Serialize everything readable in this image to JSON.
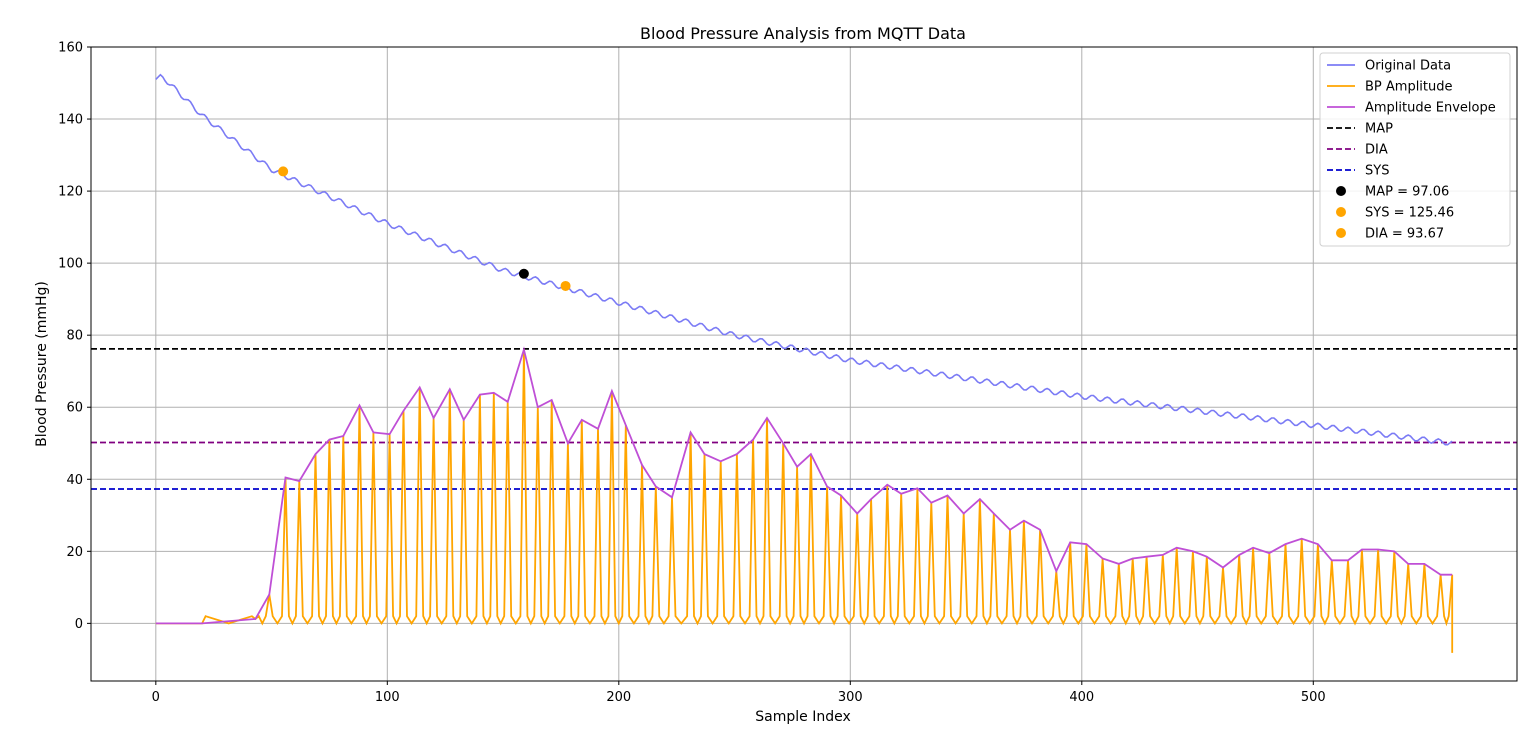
{
  "chart_data": {
    "type": "line",
    "title": "Blood Pressure Analysis from MQTT Data",
    "xlabel": "Sample Index",
    "ylabel": "Blood Pressure (mmHg)",
    "xlim": [
      -28,
      588
    ],
    "ylim": [
      -16,
      160
    ],
    "xticks": [
      0,
      100,
      200,
      300,
      400,
      500
    ],
    "yticks": [
      0,
      20,
      40,
      60,
      80,
      100,
      120,
      140,
      160
    ],
    "grid": true,
    "legend_position": "top-right",
    "colors": {
      "original": "#7b7bf5",
      "amplitude": "#ffa500",
      "envelope": "#bf4fd6",
      "map_line": "#000000",
      "dia_line": "#800080",
      "sys_line": "#0000cd",
      "map_point": "#000000",
      "sys_point": "#ffa500",
      "dia_point": "#ffa500"
    },
    "original_data": {
      "name": "Original Data",
      "start": 151,
      "end": 50,
      "x_end": 560,
      "note_values": [
        [
          0,
          151
        ],
        [
          2,
          152.3
        ],
        [
          20,
          141
        ],
        [
          50,
          126
        ],
        [
          100,
          111
        ],
        [
          150,
          98
        ],
        [
          200,
          89
        ],
        [
          250,
          80
        ],
        [
          300,
          73
        ],
        [
          350,
          68
        ],
        [
          400,
          63
        ],
        [
          450,
          59
        ],
        [
          500,
          55
        ],
        [
          560,
          50
        ]
      ]
    },
    "amplitude_envelope": {
      "name": "Amplitude Envelope",
      "x": [
        0,
        20,
        43,
        49,
        56,
        62,
        69,
        75,
        81,
        88,
        94,
        101,
        107,
        114,
        120,
        127,
        133,
        140,
        146,
        152,
        159,
        165,
        171,
        178,
        184,
        191,
        197,
        203,
        210,
        216,
        223,
        231,
        237,
        244,
        251,
        258,
        264,
        271,
        277,
        283,
        290,
        296,
        303,
        309,
        316,
        322,
        329,
        335,
        342,
        349,
        356,
        362,
        369,
        375,
        382,
        389,
        395,
        402,
        409,
        416,
        422,
        428,
        435,
        441,
        448,
        454,
        461,
        468,
        474,
        481,
        488,
        495,
        502,
        508,
        515,
        521,
        528,
        535,
        541,
        548,
        555,
        560
      ],
      "y": [
        0,
        0,
        1.2,
        8,
        40.5,
        39.5,
        47,
        51,
        52,
        60.5,
        53,
        52.5,
        59,
        65.5,
        57,
        65,
        56.5,
        63.5,
        64,
        61.5,
        76,
        60,
        62,
        50,
        56.5,
        54,
        64.5,
        55,
        44,
        38,
        35,
        53,
        47,
        45,
        47,
        51,
        57,
        50,
        43.5,
        47,
        38,
        35.5,
        30.5,
        34.5,
        38.5,
        36,
        37.5,
        33.5,
        35.5,
        30.5,
        34.5,
        30.5,
        26,
        28.5,
        26,
        14.5,
        22.5,
        22,
        18,
        16.5,
        18,
        18.5,
        19,
        21,
        20,
        18.5,
        15.5,
        19,
        21,
        19.5,
        22,
        23.5,
        22,
        17.5,
        17.5,
        20.5,
        20.5,
        20,
        16.5,
        16.5,
        13.5,
        13.5
      ]
    },
    "bp_amplitude": {
      "name": "BP Amplitude",
      "note": "oscillates between ~0 and the envelope peaks; ends at -8.2 at x=560",
      "end_value": -8.2
    },
    "reference_lines": [
      {
        "name": "MAP",
        "y": 76.2
      },
      {
        "name": "DIA",
        "y": 50.2
      },
      {
        "name": "SYS",
        "y": 37.3
      }
    ],
    "points": [
      {
        "label": "MAP = 97.06",
        "x": 159,
        "y": 97.06
      },
      {
        "label": "SYS = 125.46",
        "x": 55,
        "y": 125.46
      },
      {
        "label": "DIA = 93.67",
        "x": 177,
        "y": 93.67
      }
    ],
    "legend": [
      {
        "label": "Original Data",
        "kind": "line",
        "color_key": "original"
      },
      {
        "label": "BP Amplitude",
        "kind": "line",
        "color_key": "amplitude"
      },
      {
        "label": "Amplitude Envelope",
        "kind": "line",
        "color_key": "envelope"
      },
      {
        "label": "MAP",
        "kind": "dash",
        "color_key": "map_line"
      },
      {
        "label": "DIA",
        "kind": "dash",
        "color_key": "dia_line"
      },
      {
        "label": "SYS",
        "kind": "dash",
        "color_key": "sys_line"
      },
      {
        "label": "MAP = 97.06",
        "kind": "dot",
        "color_key": "map_point"
      },
      {
        "label": "SYS = 125.46",
        "kind": "dot",
        "color_key": "sys_point"
      },
      {
        "label": "DIA = 93.67",
        "kind": "dot",
        "color_key": "dia_point"
      }
    ]
  }
}
